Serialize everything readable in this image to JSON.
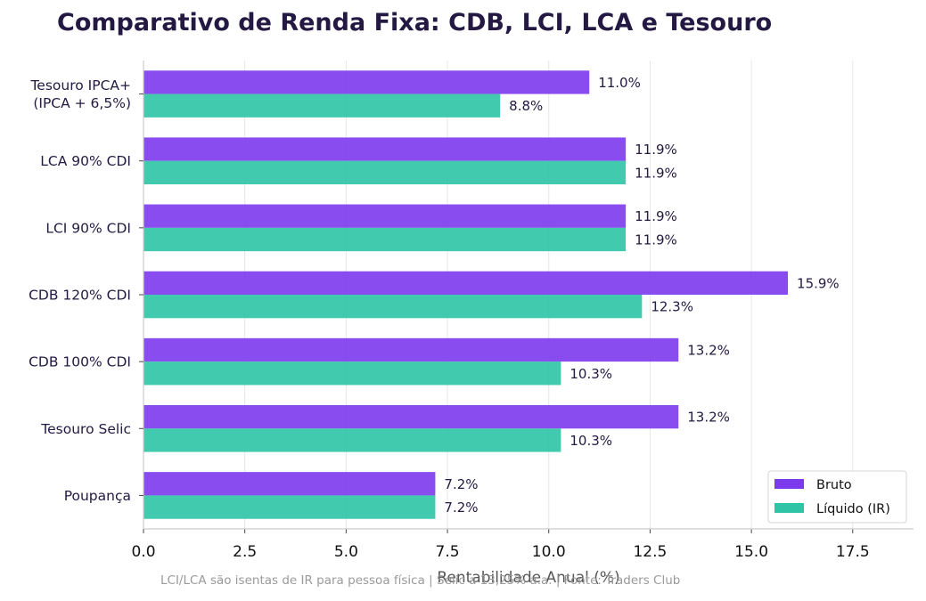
{
  "chart_data": {
    "type": "bar",
    "orientation": "horizontal",
    "title": "Comparativo de Renda Fixa: CDB, LCI, LCA e Tesouro",
    "xlabel": "Rentabilidade Anual (%)",
    "xlim": [
      0,
      19
    ],
    "xticks": [
      "0.0",
      "2.5",
      "5.0",
      "7.5",
      "10.0",
      "12.5",
      "15.0",
      "17.5"
    ],
    "xtick_values": [
      0,
      2.5,
      5,
      7.5,
      10,
      12.5,
      15,
      17.5
    ],
    "grid": "x",
    "categories": [
      "Poupança",
      "Tesouro Selic",
      "CDB 100% CDI",
      "CDB 120% CDI",
      "LCI 90% CDI",
      "LCA 90% CDI",
      "Tesouro IPCA+|(IPCA + 6,5%)"
    ],
    "series": [
      {
        "name": "Bruto",
        "color": "#7c3aed",
        "values": [
          7.2,
          13.2,
          13.2,
          15.9,
          11.9,
          11.9,
          11.0
        ],
        "labels": [
          "7.2%",
          "13.2%",
          "13.2%",
          "15.9%",
          "11.9%",
          "11.9%",
          "11.0%"
        ]
      },
      {
        "name": "Líquido (IR)",
        "color": "#2ec4a5",
        "values": [
          7.2,
          10.3,
          10.3,
          12.3,
          11.9,
          11.9,
          8.8
        ],
        "labels": [
          "7.2%",
          "10.3%",
          "10.3%",
          "12.3%",
          "11.9%",
          "11.9%",
          "8.8%"
        ]
      }
    ],
    "legend": "lower-right",
    "footnote": "LCI/LCA são isentas de IR para pessoa física | Selic a 13,25% a.a. | Fonte: Traders Club"
  }
}
